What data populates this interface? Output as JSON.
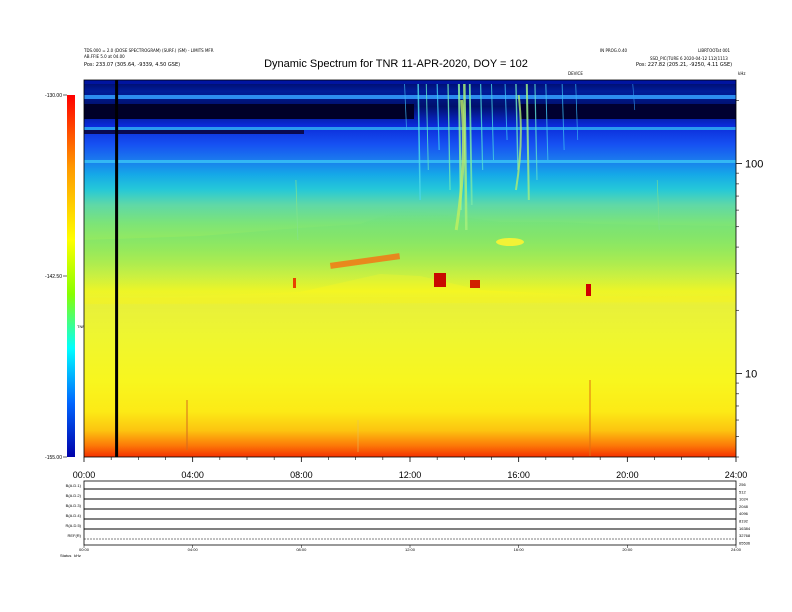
{
  "header": {
    "left_lines": [
      "TDS.000 = 2.0 (DOSE SPECTROGRAM) (SURF.) (SM) - LIMITS MFR",
      "AB.FFIE 5.0 at 04.00"
    ],
    "left_position": "Pos:    233.07 (305.64, -9339, 4.50 GSE)",
    "right_lines": [
      "IN PROG.0.40",
      "LIBRTOOTat 001",
      "SSD_PIC(TURE 6  2020-04-12 112(1113"
    ],
    "right_position": "Pos:    227.82 (205.21, -9250, 4.11 GSE)",
    "center_small": "DEVICE",
    "right_small": "kHz"
  },
  "chart_data": {
    "type": "heatmap",
    "title": "Dynamic Spectrum for TNR 11-APR-2020, DOY = 102",
    "xlabel": "",
    "ylabel": "",
    "x_ticks": [
      "00:00",
      "04:00",
      "08:00",
      "12:00",
      "16:00",
      "20:00",
      "24:00"
    ],
    "x_range_hours": [
      0,
      24
    ],
    "y_scale": "log",
    "y_ticks": [
      10,
      100
    ],
    "y_range_khz": [
      4,
      250
    ],
    "colorbar": {
      "label": "TNR",
      "ticks": [
        "-130.00",
        "-142.50",
        "-155.00"
      ],
      "range": [
        -155,
        -130
      ]
    },
    "features": [
      {
        "name": "background-plasma-line",
        "start_khz": 52,
        "end_khz": 50
      },
      {
        "name": "intense-emission-burst",
        "time_range_hours": [
          11.5,
          17.0
        ]
      },
      {
        "name": "data-gap-line",
        "time_hours": 1.2
      }
    ]
  },
  "panels": {
    "rows": [
      "B(A.D.1)",
      "B(A.D.2)",
      "B(A.D.3)",
      "B(A.D.4)",
      "R(A.D.5)",
      "REF(R)"
    ],
    "right_values": [
      "256",
      "512",
      "1024",
      "2048",
      "4096",
      "8192",
      "16384",
      "32768",
      "65536"
    ],
    "x_ticks": [
      "00:00",
      "04:00",
      "08:00",
      "12:00",
      "16:00",
      "20:00",
      "24:00"
    ],
    "footer_label": "Status",
    "footer_value": "kHz"
  }
}
